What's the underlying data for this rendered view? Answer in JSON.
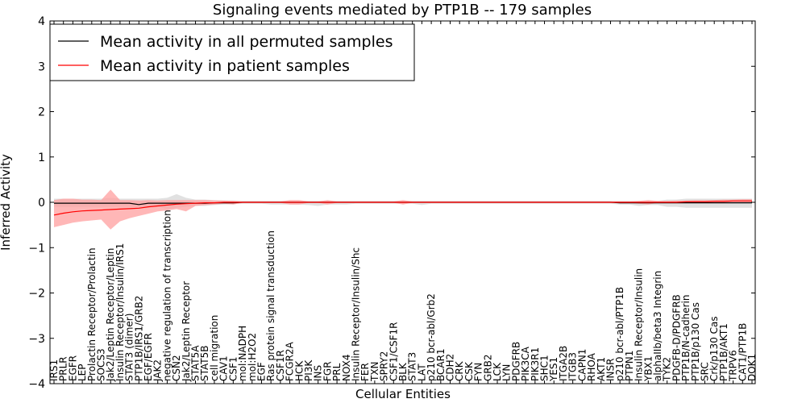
{
  "chart_data": {
    "type": "line",
    "title": "Signaling events mediated by PTP1B -- 179 samples",
    "xlabel": "Cellular Entities",
    "ylabel": "Inferred Activity",
    "ylim": [
      -4,
      4
    ],
    "yticks": [
      -4,
      -3,
      -2,
      -1,
      0,
      1,
      2,
      3,
      4
    ],
    "ytick_labels": [
      "−4",
      "−3",
      "−2",
      "−1",
      "0",
      "1",
      "2",
      "3",
      "4"
    ],
    "grid": false,
    "legend_position": "top-left",
    "categories": [
      "IRS1",
      "PRLR",
      "EGFR",
      "LEP",
      "Prolactin Receptor/Prolactin",
      "SOCS3",
      "Jak2/Leptin Receptor/Leptin",
      "Insulin Receptor/Insulin/IRS1",
      "STAT3 (dimer)",
      "PTP1B/IRS1/GRB2",
      "EGF/EGFR",
      "JAK2",
      "negative regulation of transcription",
      "CSN2",
      "Jak2/Leptin Receptor",
      "STAT5A",
      "STAT5B",
      "cell migration",
      "CAV1",
      "CSF1",
      "mol:NADPH",
      "mol:H2O2",
      "EGF",
      "Ras protein signal transduction",
      "CSF1R",
      "FCGR2A",
      "HCK",
      "PI3K",
      "INS",
      "FGR",
      "PRL",
      "NOX4",
      "Insulin Receptor/Insulin/Shc",
      "FER",
      "TXN",
      "SPRY2",
      "CSF1/CSF1R",
      "BLK",
      "STAT3",
      "LAT",
      "p210 bcr-abl/Grb2",
      "BCAR1",
      "CDH2",
      "CRK",
      "CSK",
      "FYN",
      "GRB2",
      "LCK",
      "LYN",
      "PDGFRB",
      "PIK3CA",
      "PIK3R1",
      "SHC1",
      "YES1",
      "ITGA2B",
      "ITGB3",
      "CAPN1",
      "RHOA",
      "AKT1",
      "INSR",
      "p210 bcr-abl/PTP1B",
      "PTPN1",
      "Insulin Receptor/Insulin",
      "YBX1",
      "alphaIIb/beta3 Integrin",
      "TYK2",
      "PDGFB-D/PDGFRB",
      "PTP1B/N-cadherin",
      "PTP1B/p130 Cas",
      "SRC",
      "Crk/p130 Cas",
      "PTP1B/AKT1",
      "TRPV6",
      "CAT1/PTP1B",
      "DOK1"
    ],
    "series": [
      {
        "name": "Mean activity in all permuted samples",
        "color": "#000000",
        "values": [
          -0.02,
          -0.02,
          -0.02,
          -0.02,
          -0.02,
          -0.02,
          -0.02,
          -0.02,
          -0.02,
          -0.05,
          -0.02,
          -0.02,
          -0.02,
          -0.02,
          -0.02,
          -0.02,
          -0.02,
          -0.01,
          -0.01,
          -0.01,
          0,
          0,
          0,
          0,
          0,
          0,
          0,
          0,
          0,
          0,
          0,
          0,
          0,
          0,
          0,
          0,
          0,
          0,
          0,
          0,
          0,
          0,
          0,
          0,
          0,
          0,
          0,
          0,
          0,
          0,
          0,
          0,
          0,
          0,
          0,
          0,
          0,
          0,
          0,
          0,
          -0.01,
          -0.01,
          -0.01,
          -0.01,
          -0.01,
          -0.01,
          -0.01,
          -0.01,
          -0.01,
          -0.01,
          -0.01,
          -0.01,
          -0.01,
          -0.01,
          -0.01
        ],
        "band_lower": [
          -0.1,
          -0.1,
          -0.1,
          -0.1,
          -0.1,
          -0.1,
          -0.1,
          -0.1,
          -0.1,
          -0.12,
          -0.1,
          -0.1,
          -0.15,
          -0.12,
          -0.1,
          -0.08,
          -0.08,
          -0.06,
          -0.05,
          -0.04,
          -0.03,
          -0.03,
          -0.03,
          -0.05,
          -0.05,
          -0.05,
          -0.05,
          -0.06,
          -0.08,
          -0.05,
          -0.05,
          -0.05,
          -0.03,
          -0.03,
          -0.03,
          -0.03,
          -0.03,
          -0.03,
          -0.03,
          -0.06,
          -0.03,
          -0.03,
          -0.03,
          -0.03,
          -0.03,
          -0.03,
          -0.03,
          -0.03,
          -0.03,
          -0.03,
          -0.03,
          -0.03,
          -0.03,
          -0.03,
          -0.03,
          -0.03,
          -0.03,
          -0.03,
          -0.03,
          -0.03,
          -0.05,
          -0.05,
          -0.08,
          -0.06,
          -0.06,
          -0.1,
          -0.1,
          -0.12,
          -0.12,
          -0.12,
          -0.12,
          -0.12,
          -0.12,
          -0.12,
          -0.12
        ],
        "band_upper": [
          0.08,
          0.08,
          0.08,
          0.08,
          0.08,
          0.08,
          0.1,
          0.08,
          0.08,
          0.08,
          0.08,
          0.08,
          0.1,
          0.18,
          0.1,
          0.06,
          0.06,
          0.05,
          0.04,
          0.04,
          0.03,
          0.03,
          0.03,
          0.03,
          0.03,
          0.03,
          0.03,
          0.03,
          0.03,
          0.03,
          0.03,
          0.03,
          0.03,
          0.03,
          0.03,
          0.03,
          0.03,
          0.03,
          0.03,
          0.03,
          0.03,
          0.03,
          0.03,
          0.03,
          0.03,
          0.03,
          0.03,
          0.03,
          0.03,
          0.03,
          0.03,
          0.03,
          0.03,
          0.03,
          0.03,
          0.03,
          0.03,
          0.03,
          0.03,
          0.03,
          0.03,
          0.03,
          0.03,
          0.03,
          0.03,
          0.06,
          0.06,
          0.08,
          0.08,
          0.08,
          0.08,
          0.08,
          0.08,
          0.08,
          0.08
        ]
      },
      {
        "name": "Mean activity in patient samples",
        "color": "#ff0000",
        "band_color": "#ff9f9f",
        "values": [
          -0.28,
          -0.24,
          -0.21,
          -0.19,
          -0.18,
          -0.17,
          -0.16,
          -0.15,
          -0.14,
          -0.13,
          -0.1,
          -0.08,
          -0.06,
          -0.04,
          -0.03,
          -0.02,
          -0.01,
          -0.01,
          0,
          0,
          0,
          0,
          0,
          0,
          0,
          0,
          0,
          0,
          0,
          0,
          0,
          0,
          0,
          0,
          0,
          0,
          0,
          0,
          0,
          0,
          0,
          0,
          0,
          0,
          0,
          0,
          0,
          0,
          0,
          0,
          0,
          0,
          0,
          0,
          0,
          0,
          0,
          0,
          0,
          0,
          0,
          0,
          0,
          0,
          0,
          0,
          0,
          0.01,
          0.01,
          0.01,
          0.02,
          0.02,
          0.03,
          0.03,
          0.03
        ],
        "band_lower": [
          -0.55,
          -0.5,
          -0.45,
          -0.42,
          -0.4,
          -0.38,
          -0.6,
          -0.42,
          -0.35,
          -0.3,
          -0.25,
          -0.2,
          -0.18,
          -0.15,
          -0.2,
          -0.08,
          -0.06,
          -0.05,
          -0.03,
          -0.05,
          -0.01,
          -0.01,
          -0.01,
          -0.01,
          -0.01,
          -0.05,
          -0.05,
          -0.01,
          -0.01,
          -0.05,
          -0.01,
          -0.01,
          -0.01,
          -0.01,
          -0.01,
          -0.01,
          -0.01,
          -0.05,
          -0.01,
          -0.01,
          -0.01,
          -0.01,
          -0.01,
          -0.01,
          -0.01,
          -0.01,
          -0.01,
          -0.01,
          -0.01,
          -0.01,
          -0.01,
          -0.01,
          -0.01,
          -0.01,
          -0.01,
          -0.01,
          -0.01,
          -0.01,
          -0.01,
          -0.01,
          -0.01,
          -0.01,
          -0.03,
          -0.05,
          -0.01,
          -0.01,
          -0.02,
          -0.02,
          -0.02,
          -0.02,
          -0.02,
          -0.02,
          -0.02,
          -0.01,
          -0.01
        ],
        "band_upper": [
          0.05,
          0.08,
          0.08,
          0.06,
          0.06,
          0.05,
          0.28,
          0.05,
          0.05,
          0.04,
          0.05,
          0.04,
          0.05,
          0.05,
          0.05,
          0.05,
          0.05,
          0.04,
          0.04,
          0.03,
          0.02,
          0.02,
          0.02,
          0.02,
          0.02,
          0.05,
          0.05,
          0.02,
          0.02,
          0.05,
          0.02,
          0.02,
          0.02,
          0.02,
          0.02,
          0.02,
          0.02,
          0.05,
          0.02,
          0.02,
          0.02,
          0.02,
          0.02,
          0.02,
          0.02,
          0.02,
          0.02,
          0.02,
          0.02,
          0.02,
          0.02,
          0.02,
          0.02,
          0.02,
          0.02,
          0.02,
          0.02,
          0.02,
          0.02,
          0.02,
          0.02,
          0.02,
          0.03,
          0.05,
          0.03,
          0.03,
          0.04,
          0.04,
          0.05,
          0.05,
          0.05,
          0.06,
          0.06,
          0.07,
          0.07
        ]
      }
    ],
    "legend": [
      {
        "label": "Mean activity in all permuted samples",
        "color": "#000000"
      },
      {
        "label": "Mean activity in patient samples",
        "color": "#ff0000"
      }
    ]
  }
}
